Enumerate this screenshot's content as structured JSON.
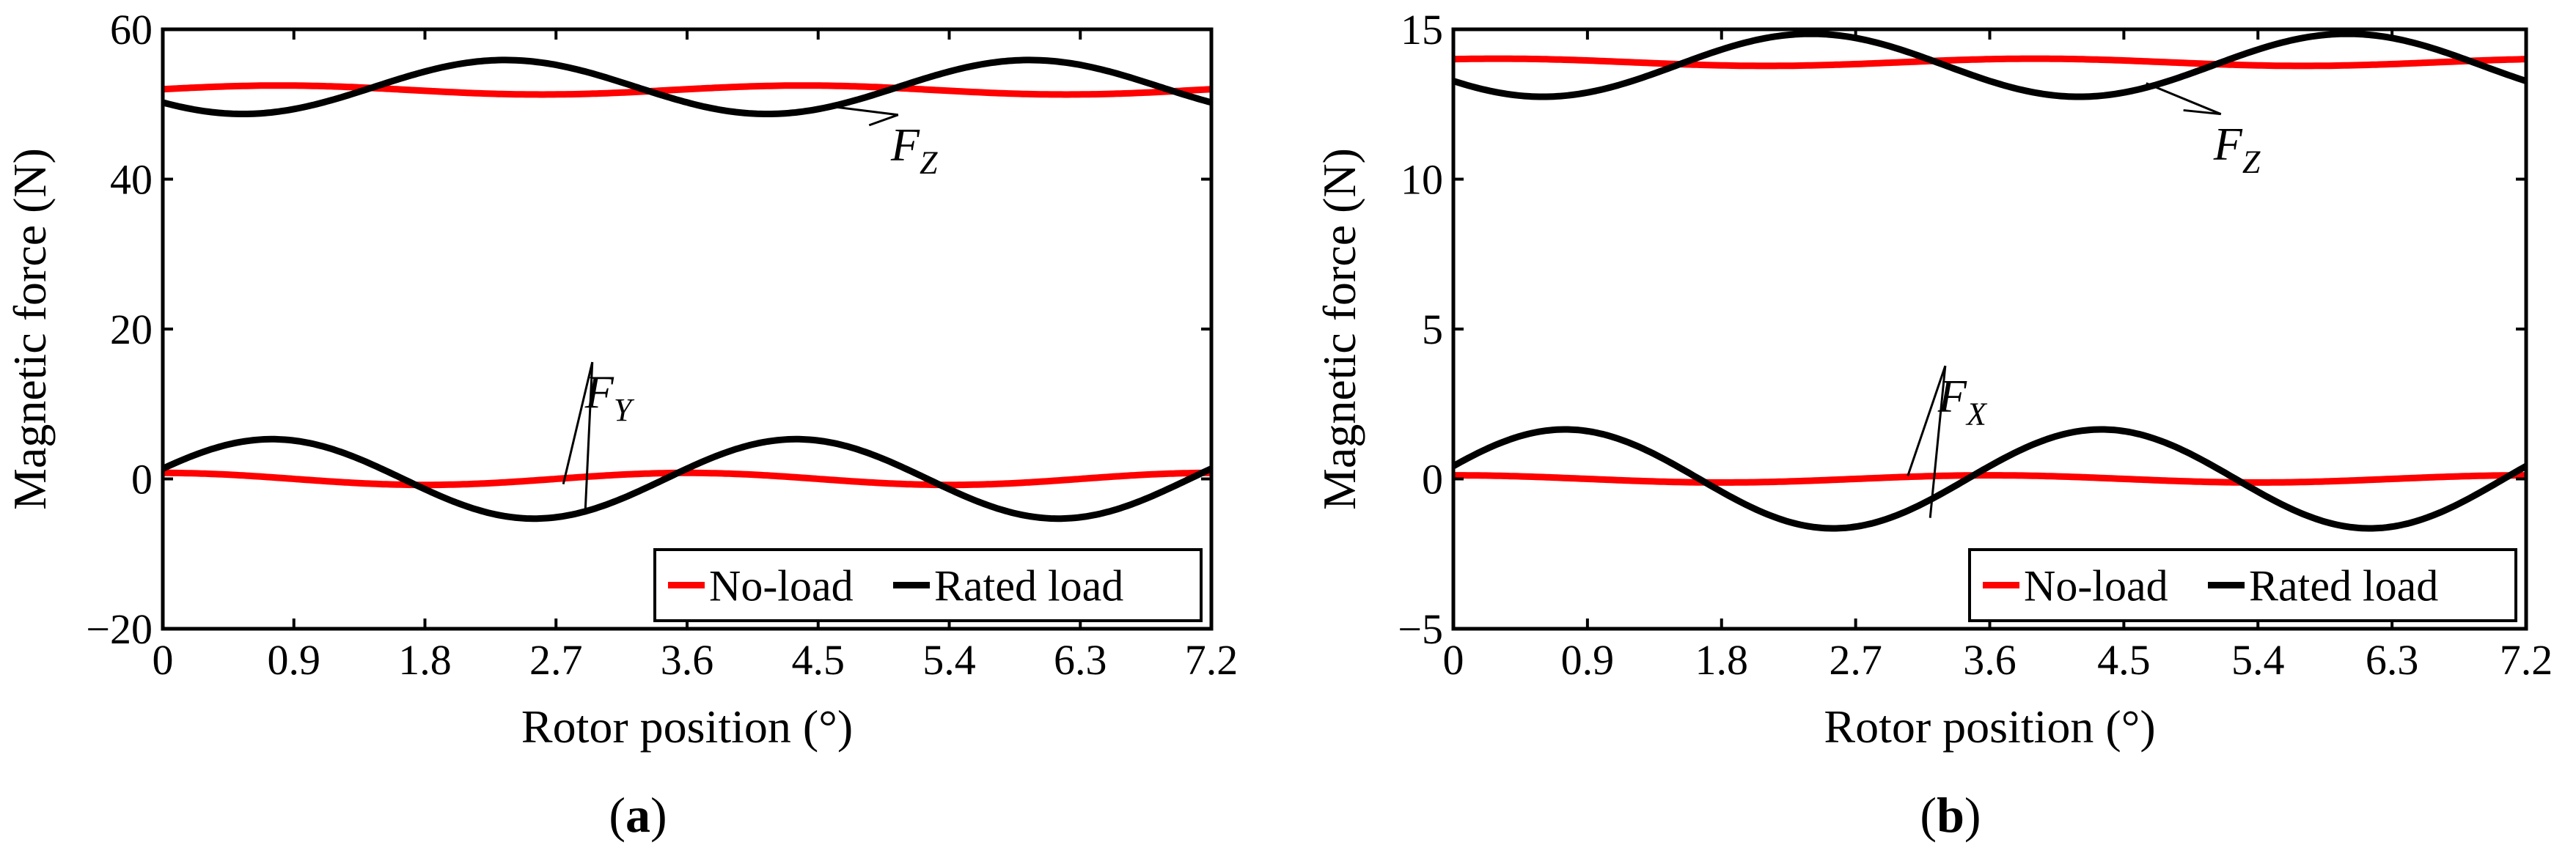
{
  "chart_data": [
    {
      "type": "line",
      "panel_label": "a",
      "xlabel": "Rotor position (°)",
      "ylabel": "Magnetic force (N)",
      "xlim": [
        0,
        7.2
      ],
      "ylim": [
        -20,
        60
      ],
      "xticks": [
        0,
        0.9,
        1.8,
        2.7,
        3.6,
        4.5,
        5.4,
        6.3,
        7.2
      ],
      "xtick_labels": [
        "0",
        "0.9",
        "1.8",
        "2.7",
        "3.6",
        "4.5",
        "5.4",
        "6.3",
        "7.2"
      ],
      "yticks": [
        -20,
        0,
        20,
        40,
        60
      ],
      "ytick_labels": [
        "−20",
        "0",
        "20",
        "40",
        "60"
      ],
      "legend": [
        "No-load",
        "Rated load"
      ],
      "legend_position": "bottom-right",
      "colors": {
        "no_load": "#ff0000",
        "rated_load": "#000000"
      },
      "series": [
        {
          "name": "No-load",
          "component": "F_Z",
          "mean": 51.9,
          "amp": 0.6,
          "period": 3.6,
          "phase_deg": 10
        },
        {
          "name": "Rated load",
          "component": "F_Z",
          "mean": 52.3,
          "amp": 3.6,
          "period": 3.6,
          "phase_deg": 215
        },
        {
          "name": "No-load",
          "component": "F_Y",
          "mean": 0.0,
          "amp": 0.8,
          "period": 3.6,
          "phase_deg": 90
        },
        {
          "name": "Rated load",
          "component": "F_Y",
          "mean": 0.0,
          "amp": 5.3,
          "period": 3.6,
          "phase_deg": 15
        }
      ],
      "annotations": [
        {
          "text": "F",
          "sub": "Z",
          "at": [
            5.15,
            43.5
          ],
          "targets": [
            [
              4.55,
              49.8
            ],
            [
              4.85,
              47.2
            ]
          ]
        },
        {
          "text": "F",
          "sub": "Y",
          "at": [
            3.05,
            10.5
          ],
          "targets": [
            [
              2.75,
              -0.7
            ],
            [
              2.9,
              -4.7
            ]
          ]
        }
      ]
    },
    {
      "type": "line",
      "panel_label": "b",
      "xlabel": "Rotor position (°)",
      "ylabel": "Magnetic force (N)",
      "xlim": [
        0,
        7.2
      ],
      "ylim": [
        -5,
        15
      ],
      "xticks": [
        0,
        0.9,
        1.8,
        2.7,
        3.6,
        4.5,
        5.4,
        6.3,
        7.2
      ],
      "xtick_labels": [
        "0",
        "0.9",
        "1.8",
        "2.7",
        "3.6",
        "4.5",
        "5.4",
        "6.3",
        "7.2"
      ],
      "yticks": [
        -5,
        0,
        5,
        10,
        15
      ],
      "ytick_labels": [
        "−5",
        "0",
        "5",
        "10",
        "15"
      ],
      "legend": [
        "No-load",
        "Rated load"
      ],
      "legend_position": "bottom-right",
      "colors": {
        "no_load": "#ff0000",
        "rated_load": "#000000"
      },
      "series": [
        {
          "name": "No-load",
          "component": "F_Z",
          "mean": 13.9,
          "amp": 0.12,
          "period": 3.6,
          "phase_deg": 60
        },
        {
          "name": "Rated load",
          "component": "F_Z",
          "mean": 13.8,
          "amp": 1.05,
          "period": 3.6,
          "phase_deg": 210
        },
        {
          "name": "No-load",
          "component": "F_X",
          "mean": 0.0,
          "amp": 0.12,
          "period": 3.6,
          "phase_deg": 90
        },
        {
          "name": "Rated load",
          "component": "F_X",
          "mean": 0.0,
          "amp": 1.65,
          "period": 3.6,
          "phase_deg": 15
        }
      ],
      "annotations": [
        {
          "text": "F",
          "sub": "Z",
          "at": [
            5.25,
            10.9
          ],
          "targets": [
            [
              4.65,
              13.2
            ],
            [
              4.9,
              12.3
            ]
          ]
        },
        {
          "text": "F",
          "sub": "X",
          "at": [
            3.4,
            2.5
          ],
          "targets": [
            [
              3.05,
              0.1
            ],
            [
              3.2,
              -1.3
            ]
          ]
        }
      ]
    }
  ]
}
